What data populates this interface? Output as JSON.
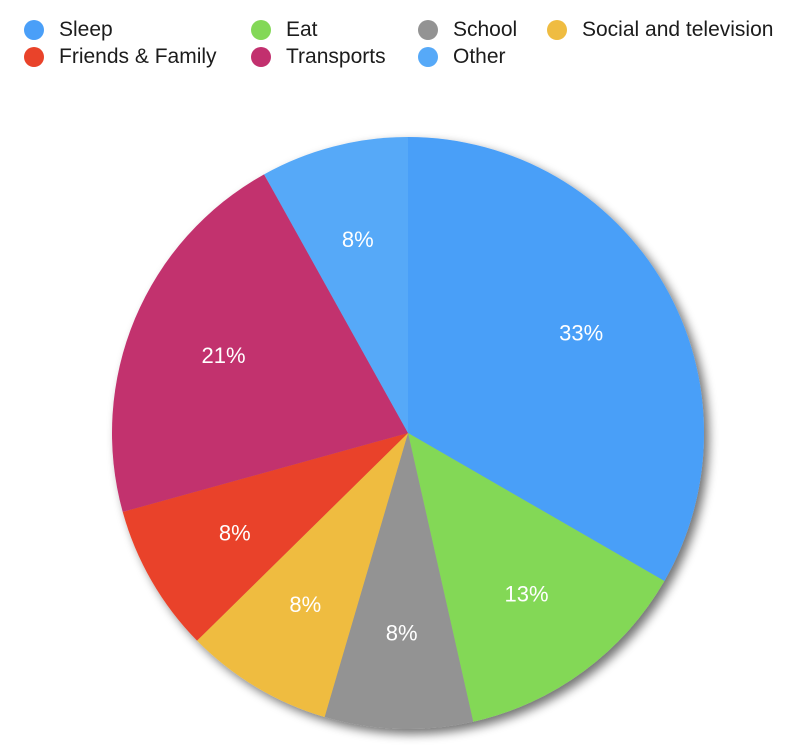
{
  "chart_data": {
    "type": "pie",
    "categories": [
      "Sleep",
      "Eat",
      "School",
      "Social and television",
      "Friends & Family",
      "Transports",
      "Other"
    ],
    "values": [
      33,
      13,
      8,
      8,
      8,
      21,
      8
    ],
    "labels": [
      "33%",
      "13%",
      "8%",
      "8%",
      "8%",
      "21%",
      "8%"
    ],
    "colors": [
      "#4a9ff8",
      "#83d857",
      "#939393",
      "#efbc41",
      "#e9432a",
      "#c2306e",
      "#56a9f8"
    ],
    "legend_position": "top",
    "legend": [
      {
        "label": "Sleep",
        "color": "#4a9ff8"
      },
      {
        "label": "Eat",
        "color": "#83d857"
      },
      {
        "label": "School",
        "color": "#939393"
      },
      {
        "label": "Social and television",
        "color": "#efbc41"
      },
      {
        "label": "Friends & Family",
        "color": "#e9432a"
      },
      {
        "label": "Transports",
        "color": "#c2306e"
      },
      {
        "label": "Other",
        "color": "#56a9f8"
      }
    ]
  }
}
